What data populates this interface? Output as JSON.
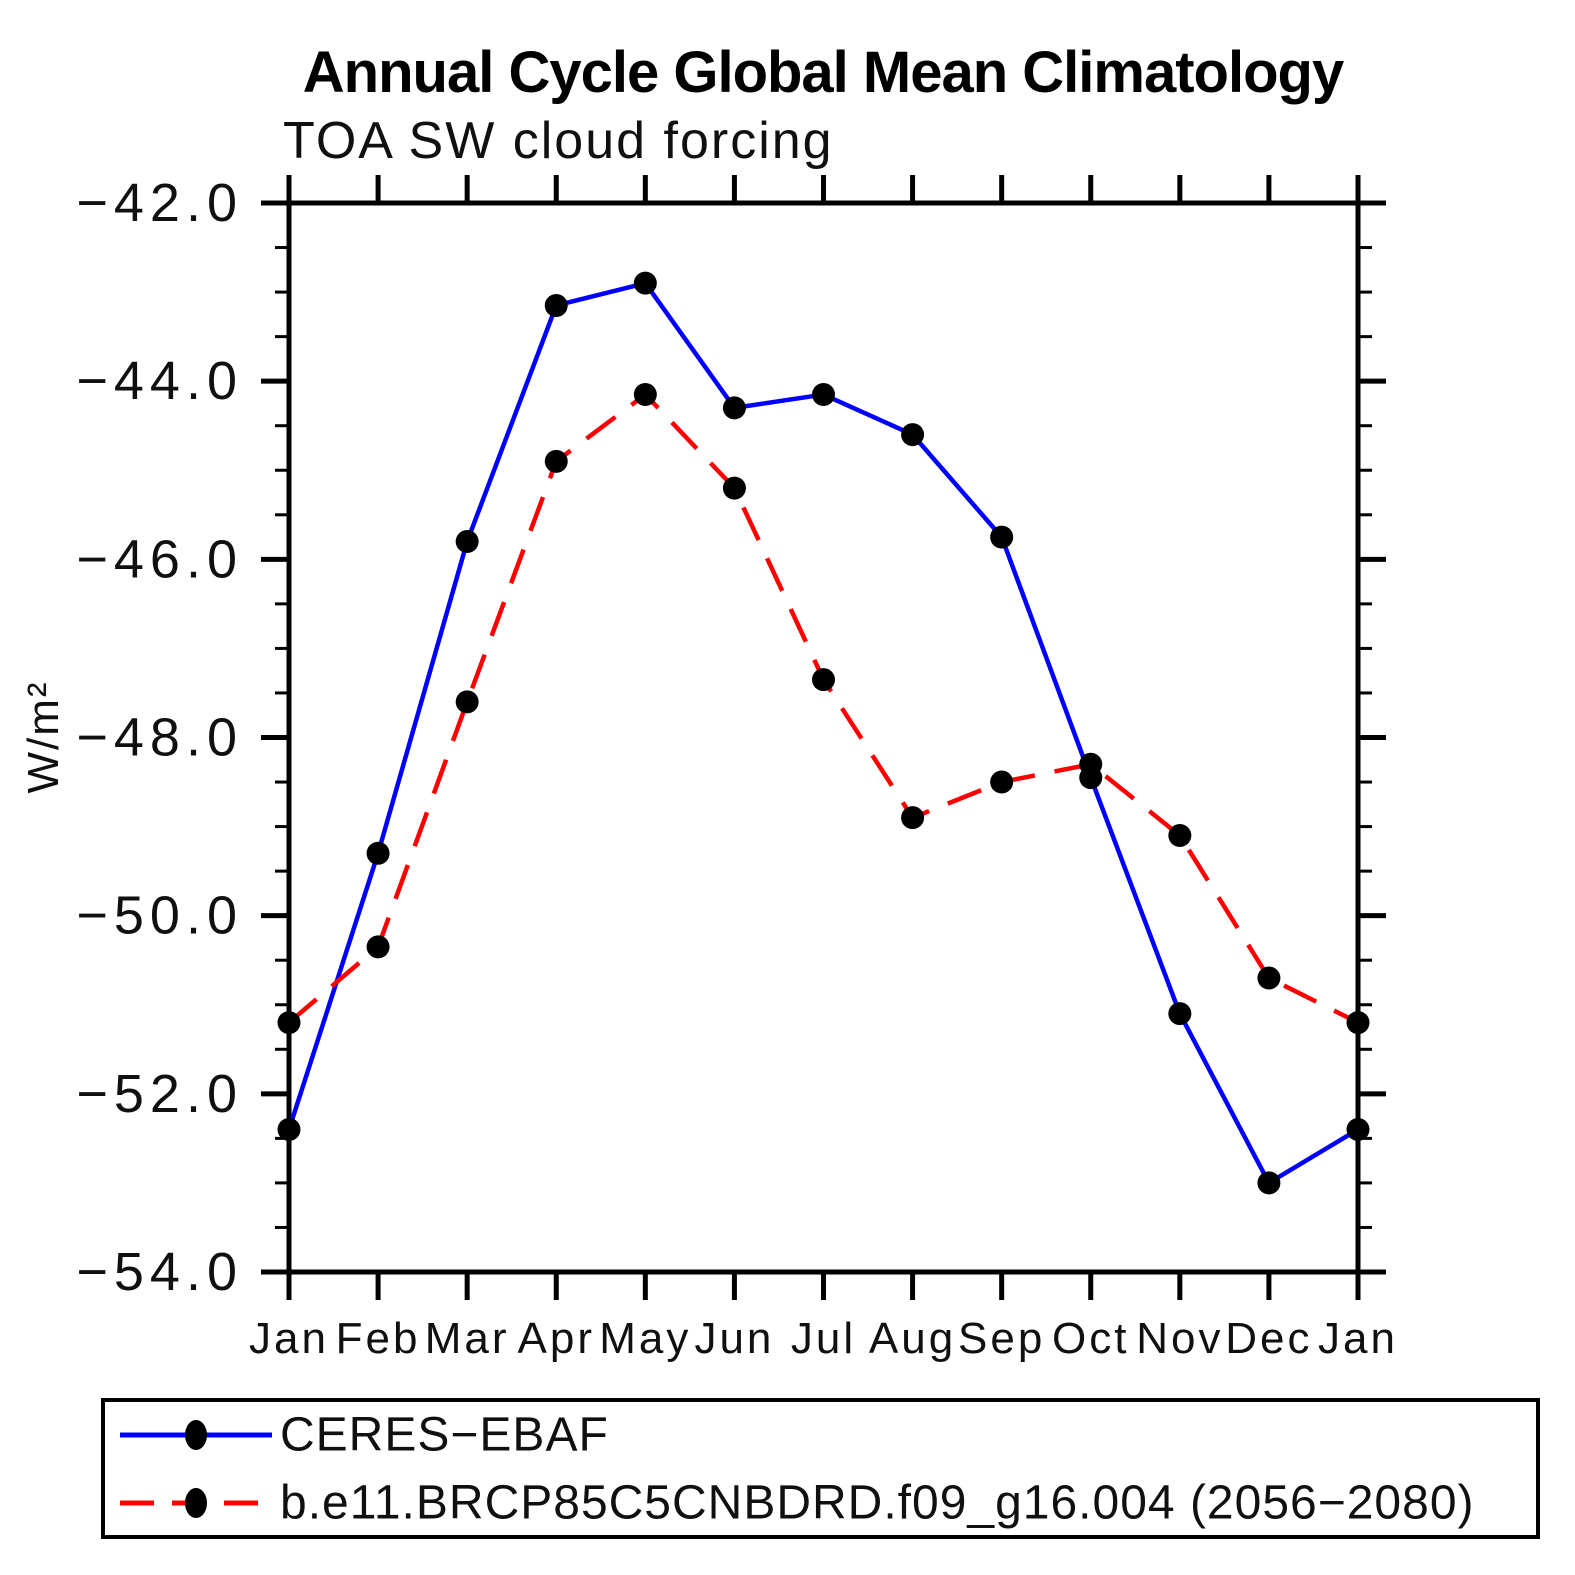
{
  "title": "Annual Cycle Global Mean Climatology",
  "subtitle": "TOA SW cloud forcing",
  "chart_data": {
    "type": "line",
    "title": "Annual Cycle Global Mean Climatology",
    "subtitle": "TOA SW cloud forcing",
    "ylabel": "W/m²",
    "xlabel": "",
    "categories": [
      "Jan",
      "Feb",
      "Mar",
      "Apr",
      "May",
      "Jun",
      "Jul",
      "Aug",
      "Sep",
      "Oct",
      "Nov",
      "Dec",
      "Jan"
    ],
    "series": [
      {
        "name": "CERES−EBAF",
        "color": "#0000ff",
        "line_style": "solid",
        "marker": "filled-circle",
        "marker_color": "#000000",
        "values": [
          -52.4,
          -49.3,
          -45.8,
          -43.15,
          -42.9,
          -44.3,
          -44.15,
          -44.6,
          -45.75,
          -48.45,
          -51.1,
          -53.0,
          -52.4
        ]
      },
      {
        "name": "b.e11.BRCP85C5CNBDRD.f09_g16.004 (2056−2080)",
        "color": "#ff0000",
        "line_style": "dashed",
        "marker": "filled-circle",
        "marker_color": "#000000",
        "values": [
          -51.2,
          -50.35,
          -47.6,
          -44.9,
          -44.15,
          -45.2,
          -47.35,
          -48.9,
          -48.5,
          -48.3,
          -49.1,
          -50.7,
          -51.2
        ]
      }
    ],
    "ylim": [
      -54,
      -42
    ],
    "yticks_major": [
      -42,
      -44,
      -46,
      -48,
      -50,
      -52,
      -54
    ],
    "ytick_labels": [
      "−42.0",
      "−44.0",
      "−46.0",
      "−48.0",
      "−50.0",
      "−52.0",
      "−54.0"
    ],
    "ytick_minor_step": 0.5,
    "grid": false,
    "legend_position": "bottom"
  }
}
